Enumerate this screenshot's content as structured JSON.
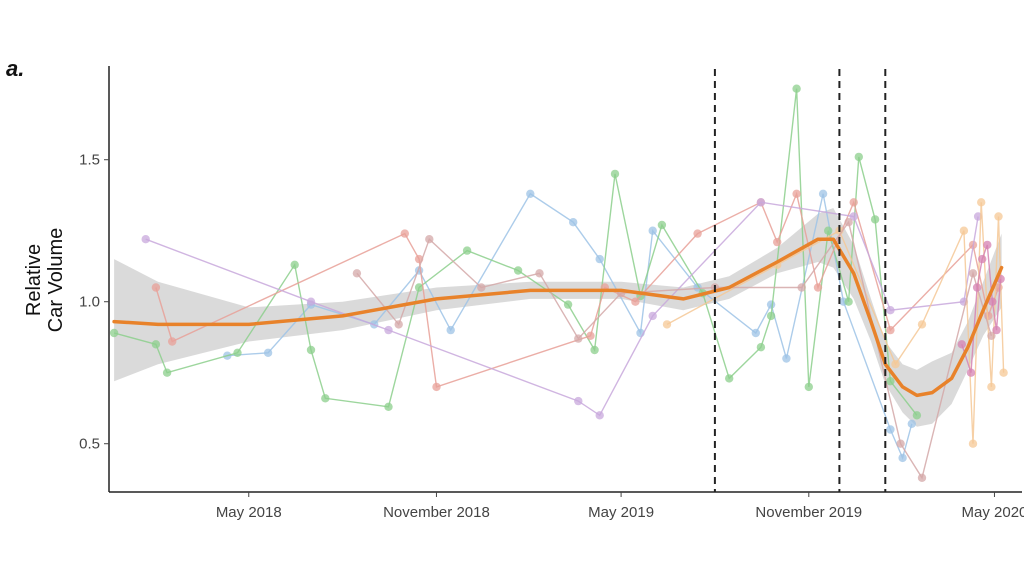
{
  "panel_label": "a.",
  "chart_data": {
    "type": "line",
    "title": "",
    "xlabel": "",
    "ylabel_lines": [
      "Relative",
      "Car Volume"
    ],
    "x_range": [
      "2017-12-15",
      "2020-05-28"
    ],
    "ylim": [
      0.33,
      1.83
    ],
    "y_ticks": [
      0.5,
      1.0,
      1.5
    ],
    "y_tick_labels": [
      "0.5",
      "1.0",
      "1.5"
    ],
    "x_ticks": [
      "2018-05-01",
      "2018-11-01",
      "2019-05-01",
      "2019-11-01",
      "2020-05-01"
    ],
    "x_tick_labels": [
      "May 2018",
      "November 2018",
      "May 2019",
      "November 2019",
      "May 2020"
    ],
    "grid": false,
    "legend": "none",
    "vlines": [
      "2019-08-01",
      "2019-12-01",
      "2020-01-15"
    ],
    "series": [
      {
        "color": "#9ec3e6",
        "points": [
          [
            "2018-04-10",
            0.81
          ],
          [
            "2018-05-20",
            0.82
          ],
          [
            "2018-07-01",
            0.99
          ],
          [
            "2018-09-01",
            0.92
          ],
          [
            "2018-10-15",
            1.11
          ],
          [
            "2018-11-15",
            0.9
          ],
          [
            "2019-02-01",
            1.38
          ],
          [
            "2019-03-15",
            1.28
          ],
          [
            "2019-04-10",
            1.15
          ],
          [
            "2019-05-20",
            0.89
          ],
          [
            "2019-06-01",
            1.25
          ],
          [
            "2019-07-15",
            1.05
          ],
          [
            "2019-09-10",
            0.89
          ],
          [
            "2019-09-25",
            0.99
          ],
          [
            "2019-10-10",
            0.8
          ],
          [
            "2019-11-15",
            1.38
          ],
          [
            "2019-12-05",
            1.0
          ],
          [
            "2020-01-20",
            0.55
          ],
          [
            "2020-02-01",
            0.45
          ],
          [
            "2020-02-10",
            0.57
          ]
        ]
      },
      {
        "color": "#8ccf8c",
        "points": [
          [
            "2017-12-20",
            0.89
          ],
          [
            "2018-01-30",
            0.85
          ],
          [
            "2018-02-10",
            0.75
          ],
          [
            "2018-04-20",
            0.82
          ],
          [
            "2018-06-15",
            1.13
          ],
          [
            "2018-07-01",
            0.83
          ],
          [
            "2018-07-15",
            0.66
          ],
          [
            "2018-09-15",
            0.63
          ],
          [
            "2018-10-15",
            1.05
          ],
          [
            "2018-12-01",
            1.18
          ],
          [
            "2019-01-20",
            1.11
          ],
          [
            "2019-03-10",
            0.99
          ],
          [
            "2019-04-05",
            0.83
          ],
          [
            "2019-04-25",
            1.45
          ],
          [
            "2019-05-20",
            1.02
          ],
          [
            "2019-06-10",
            1.27
          ],
          [
            "2019-07-20",
            1.03
          ],
          [
            "2019-08-15",
            0.73
          ],
          [
            "2019-09-15",
            0.84
          ],
          [
            "2019-09-25",
            0.95
          ],
          [
            "2019-10-20",
            1.75
          ],
          [
            "2019-11-01",
            0.7
          ],
          [
            "2019-11-20",
            1.25
          ],
          [
            "2019-12-10",
            1.0
          ],
          [
            "2019-12-20",
            1.51
          ],
          [
            "2020-01-05",
            1.29
          ],
          [
            "2020-01-20",
            0.72
          ],
          [
            "2020-02-15",
            0.6
          ]
        ]
      },
      {
        "color": "#e8a098",
        "points": [
          [
            "2018-01-30",
            1.05
          ],
          [
            "2018-02-15",
            0.86
          ],
          [
            "2018-10-01",
            1.24
          ],
          [
            "2018-10-15",
            1.15
          ],
          [
            "2018-11-01",
            0.7
          ],
          [
            "2019-04-01",
            0.88
          ],
          [
            "2019-04-15",
            1.05
          ],
          [
            "2019-05-15",
            1.0
          ],
          [
            "2019-07-15",
            1.24
          ],
          [
            "2019-09-15",
            1.35
          ],
          [
            "2019-10-01",
            1.21
          ],
          [
            "2019-10-20",
            1.38
          ],
          [
            "2019-11-10",
            1.05
          ],
          [
            "2019-12-15",
            1.35
          ],
          [
            "2020-01-20",
            0.9
          ],
          [
            "2020-04-10",
            1.2
          ],
          [
            "2020-04-25",
            0.95
          ],
          [
            "2020-05-05",
            1.05
          ]
        ]
      },
      {
        "color": "#c8a8dc",
        "points": [
          [
            "2018-01-20",
            1.22
          ],
          [
            "2018-07-01",
            1.0
          ],
          [
            "2018-09-15",
            0.9
          ],
          [
            "2019-03-20",
            0.65
          ],
          [
            "2019-04-10",
            0.6
          ],
          [
            "2019-06-01",
            0.95
          ],
          [
            "2019-09-15",
            1.35
          ],
          [
            "2019-12-15",
            1.3
          ],
          [
            "2020-01-20",
            0.97
          ],
          [
            "2020-04-01",
            1.0
          ],
          [
            "2020-04-15",
            1.3
          ]
        ]
      },
      {
        "color": "#f5c896",
        "points": [
          [
            "2019-06-15",
            0.92
          ],
          [
            "2019-10-01",
            1.13
          ],
          [
            "2019-12-01",
            1.25
          ],
          [
            "2020-01-25",
            0.78
          ],
          [
            "2020-02-20",
            0.92
          ],
          [
            "2020-04-01",
            1.25
          ],
          [
            "2020-04-10",
            0.5
          ],
          [
            "2020-04-18",
            1.35
          ],
          [
            "2020-04-28",
            0.7
          ],
          [
            "2020-05-05",
            1.3
          ],
          [
            "2020-05-10",
            0.75
          ]
        ]
      },
      {
        "color": "#d4a8a8",
        "points": [
          [
            "2018-08-15",
            1.1
          ],
          [
            "2018-09-25",
            0.92
          ],
          [
            "2018-10-25",
            1.22
          ],
          [
            "2018-12-15",
            1.05
          ],
          [
            "2019-02-10",
            1.1
          ],
          [
            "2019-03-20",
            0.87
          ],
          [
            "2019-05-01",
            1.03
          ],
          [
            "2019-08-01",
            1.05
          ],
          [
            "2019-10-25",
            1.05
          ],
          [
            "2019-12-10",
            1.28
          ],
          [
            "2020-01-30",
            0.5
          ],
          [
            "2020-02-20",
            0.38
          ],
          [
            "2020-04-10",
            1.1
          ],
          [
            "2020-04-28",
            0.88
          ]
        ]
      },
      {
        "color": "#d682b2",
        "points": [
          [
            "2020-03-30",
            0.85
          ],
          [
            "2020-04-08",
            0.75
          ],
          [
            "2020-04-14",
            1.05
          ],
          [
            "2020-04-19",
            1.15
          ],
          [
            "2020-04-24",
            1.2
          ],
          [
            "2020-04-29",
            1.0
          ],
          [
            "2020-05-03",
            0.9
          ],
          [
            "2020-05-07",
            1.08
          ]
        ]
      }
    ],
    "smooth": {
      "color": "#e8822a",
      "band_color": "#d4d4d4",
      "x": [
        "2017-12-20",
        "2018-02-01",
        "2018-05-01",
        "2018-08-01",
        "2018-11-01",
        "2019-02-01",
        "2019-05-01",
        "2019-07-01",
        "2019-08-15",
        "2019-10-01",
        "2019-11-10",
        "2019-11-25",
        "2019-12-15",
        "2020-01-01",
        "2020-01-15",
        "2020-02-01",
        "2020-02-15",
        "2020-03-01",
        "2020-03-20",
        "2020-04-05",
        "2020-04-20",
        "2020-05-08"
      ],
      "fit": [
        0.93,
        0.92,
        0.92,
        0.95,
        1.01,
        1.04,
        1.04,
        1.01,
        1.05,
        1.14,
        1.22,
        1.22,
        1.1,
        0.93,
        0.78,
        0.7,
        0.67,
        0.68,
        0.73,
        0.84,
        0.97,
        1.12
      ],
      "lower": [
        0.72,
        0.78,
        0.86,
        0.9,
        0.97,
        1.01,
        1.01,
        0.97,
        1.01,
        1.1,
        1.14,
        1.12,
        1.01,
        0.86,
        0.71,
        0.61,
        0.56,
        0.57,
        0.64,
        0.76,
        0.88,
        0.98
      ],
      "upper": [
        1.15,
        1.07,
        0.98,
        1.0,
        1.05,
        1.07,
        1.07,
        1.05,
        1.09,
        1.19,
        1.31,
        1.33,
        1.2,
        1.01,
        0.86,
        0.78,
        0.76,
        0.79,
        0.82,
        0.93,
        1.07,
        1.24
      ]
    }
  }
}
